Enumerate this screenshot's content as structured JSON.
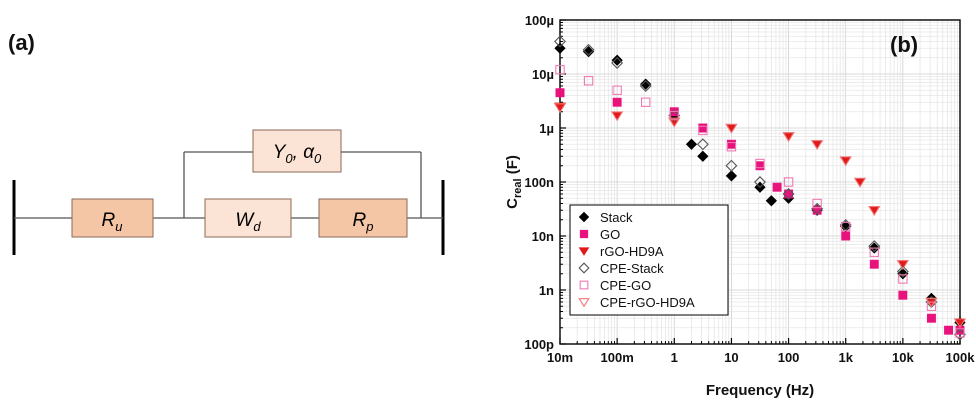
{
  "panel_a": {
    "label": "(a)",
    "components": {
      "ru": {
        "main": "R",
        "sub": "u"
      },
      "wd": {
        "main": "W",
        "sub": "d"
      },
      "rp": {
        "main": "R",
        "sub": "p"
      },
      "cpe": {
        "main": "Y",
        "sub": "0",
        "sep": ", α",
        "sub2": "0"
      }
    },
    "colors": {
      "ru": "#F4C6A5",
      "rp": "#F4C6A5",
      "wd": "#FBE3D5",
      "cpe": "#FBE3D5",
      "border": "#8c6a58"
    }
  },
  "chart_data": {
    "type": "scatter",
    "panel_label": "(b)",
    "xlabel": "Frequency (Hz)",
    "ylabel": {
      "main": "C",
      "sub": "real",
      "unit": " (F)"
    },
    "xscale": "log",
    "yscale": "log",
    "xlim": [
      0.01,
      100000
    ],
    "ylim": [
      1e-10,
      0.0001
    ],
    "grid": true,
    "legend_position": "bottom-left",
    "x_ticks": [
      {
        "value": 0.01,
        "label": "10m"
      },
      {
        "value": 0.1,
        "label": "100m"
      },
      {
        "value": 1,
        "label": "1"
      },
      {
        "value": 10,
        "label": "10"
      },
      {
        "value": 100,
        "label": "100"
      },
      {
        "value": 1000,
        "label": "1k"
      },
      {
        "value": 10000,
        "label": "10k"
      },
      {
        "value": 100000,
        "label": "100k"
      }
    ],
    "y_ticks": [
      {
        "value": 0.0001,
        "label": "100µ"
      },
      {
        "value": 1e-05,
        "label": "10µ"
      },
      {
        "value": 1e-06,
        "label": "1µ"
      },
      {
        "value": 1e-07,
        "label": "100n"
      },
      {
        "value": 1e-08,
        "label": "10n"
      },
      {
        "value": 1e-09,
        "label": "1n"
      },
      {
        "value": 1e-10,
        "label": "100p"
      }
    ],
    "series": [
      {
        "name": "Stack",
        "color": "#000000",
        "marker": "diamond",
        "filled": true,
        "points": [
          [
            0.01,
            3e-05
          ],
          [
            0.0316,
            2.6e-05
          ],
          [
            0.1,
            1.8e-05
          ],
          [
            0.316,
            6.5e-06
          ],
          [
            1,
            1.5e-06
          ],
          [
            2,
            5e-07
          ],
          [
            3.16,
            3e-07
          ],
          [
            10,
            1.3e-07
          ],
          [
            31.6,
            8e-08
          ],
          [
            50,
            4.5e-08
          ],
          [
            100,
            5e-08
          ],
          [
            316,
            3e-08
          ],
          [
            1000,
            1.5e-08
          ],
          [
            3162,
            6e-09
          ],
          [
            10000,
            2e-09
          ],
          [
            31623,
            7e-10
          ],
          [
            100000,
            2.5e-10
          ]
        ]
      },
      {
        "name": "GO",
        "color": "#E8127C",
        "marker": "square",
        "filled": true,
        "points": [
          [
            0.01,
            4.5e-06
          ],
          [
            0.1,
            3e-06
          ],
          [
            1,
            2e-06
          ],
          [
            3.16,
            1e-06
          ],
          [
            10,
            5e-07
          ],
          [
            31.6,
            2e-07
          ],
          [
            63,
            8e-08
          ],
          [
            100,
            6e-08
          ],
          [
            316,
            3e-08
          ],
          [
            1000,
            1e-08
          ],
          [
            3162,
            3e-09
          ],
          [
            10000,
            8e-10
          ],
          [
            31623,
            3e-10
          ],
          [
            63096,
            1.8e-10
          ],
          [
            100000,
            1.8e-10
          ]
        ]
      },
      {
        "name": "rGO-HD9A",
        "color": "#E31919",
        "marker": "triangle-down",
        "filled": true,
        "points": [
          [
            0.01,
            2.5e-06
          ],
          [
            0.1,
            1.7e-06
          ],
          [
            1,
            1.3e-06
          ],
          [
            10,
            1e-06
          ],
          [
            100,
            7e-07
          ],
          [
            316,
            5e-07
          ],
          [
            1000,
            2.5e-07
          ],
          [
            1778,
            1e-07
          ],
          [
            3162,
            3e-08
          ],
          [
            10000,
            3e-09
          ],
          [
            31623,
            6e-10
          ],
          [
            100000,
            2.5e-10
          ]
        ]
      },
      {
        "name": "CPE-Stack",
        "color": "#555555",
        "marker": "diamond",
        "filled": false,
        "points": [
          [
            0.01,
            4e-05
          ],
          [
            0.0316,
            2.8e-05
          ],
          [
            0.1,
            1.6e-05
          ],
          [
            0.316,
            6e-06
          ],
          [
            1,
            1.7e-06
          ],
          [
            3.16,
            5e-07
          ],
          [
            10,
            2e-07
          ],
          [
            31.6,
            1e-07
          ],
          [
            100,
            6e-08
          ],
          [
            316,
            3.2e-08
          ],
          [
            1000,
            1.6e-08
          ],
          [
            3162,
            6.5e-09
          ],
          [
            10000,
            2.2e-09
          ],
          [
            31623,
            6e-10
          ],
          [
            100000,
            1.5e-10
          ]
        ]
      },
      {
        "name": "CPE-GO",
        "color": "#F07AB4",
        "marker": "square",
        "filled": false,
        "points": [
          [
            0.01,
            1.2e-05
          ],
          [
            0.0316,
            7.5e-06
          ],
          [
            0.1,
            5e-06
          ],
          [
            0.316,
            3e-06
          ],
          [
            1,
            1.7e-06
          ],
          [
            3.16,
            9e-07
          ],
          [
            10,
            4.5e-07
          ],
          [
            31.6,
            2.2e-07
          ],
          [
            100,
            1e-07
          ],
          [
            316,
            4e-08
          ],
          [
            1000,
            1.5e-08
          ],
          [
            3162,
            5e-09
          ],
          [
            10000,
            1.6e-09
          ],
          [
            31623,
            5e-10
          ],
          [
            100000,
            1.6e-10
          ]
        ]
      },
      {
        "name": "CPE-rGO-HD9A",
        "color": "#F07878",
        "marker": "triangle-down",
        "filled": false,
        "points": [
          [
            0.01,
            2.4e-06
          ],
          [
            0.1,
            1.7e-06
          ],
          [
            1,
            1.3e-06
          ],
          [
            10,
            1e-06
          ],
          [
            100,
            7e-07
          ],
          [
            316,
            5e-07
          ],
          [
            1000,
            2.5e-07
          ],
          [
            1778,
            1e-07
          ],
          [
            3162,
            3e-08
          ],
          [
            10000,
            3e-09
          ],
          [
            31623,
            6e-10
          ],
          [
            100000,
            2.5e-10
          ]
        ]
      }
    ]
  }
}
